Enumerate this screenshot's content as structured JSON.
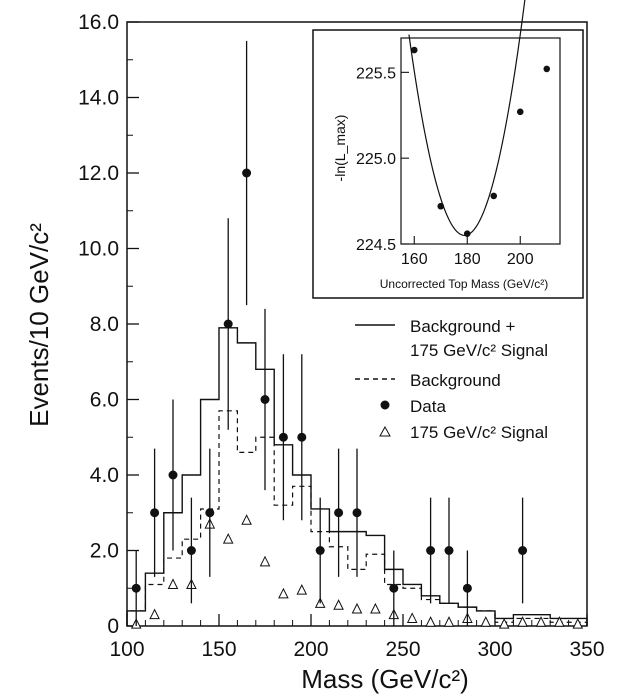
{
  "chart_data": [
    {
      "type": "histogram",
      "xlabel": "Mass (GeV/c²)",
      "ylabel": "Events/10 GeV/c²",
      "xlim": [
        100,
        350
      ],
      "ylim": [
        0,
        16
      ],
      "xticks": [
        "100",
        "150",
        "200",
        "250",
        "300",
        "350"
      ],
      "yticks": [
        "0",
        "2.0",
        "4.0",
        "6.0",
        "8.0",
        "10.0",
        "12.0",
        "14.0",
        "16.0"
      ],
      "bin_edges": [
        100,
        110,
        120,
        130,
        140,
        150,
        160,
        170,
        180,
        190,
        200,
        210,
        220,
        230,
        240,
        250,
        260,
        270,
        280,
        290,
        300,
        310,
        320,
        330,
        340,
        350
      ],
      "series": [
        {
          "name": "Background + 175 GeV/c² Signal",
          "style": "solid-step",
          "values": [
            0.4,
            1.4,
            3.0,
            4.0,
            6.0,
            7.9,
            7.5,
            6.8,
            4.8,
            4.0,
            3.1,
            2.5,
            2.5,
            2.4,
            1.5,
            1.1,
            0.8,
            0.6,
            0.5,
            0.4,
            0.2,
            0.3,
            0.3,
            0.2,
            0.2
          ]
        },
        {
          "name": "Background",
          "style": "dashed-step",
          "values": [
            0.4,
            1.1,
            1.8,
            2.3,
            3.1,
            5.7,
            4.6,
            5.0,
            3.2,
            3.7,
            2.5,
            2.1,
            1.5,
            1.9,
            1.1,
            1.0,
            0.7,
            0.6,
            0.5,
            0.4,
            0.1,
            0.2,
            0.2,
            0.1,
            0.1
          ]
        },
        {
          "name": "Data",
          "style": "points-with-errors",
          "points": [
            {
              "x": 105,
              "y": 1,
              "err": 1.0
            },
            {
              "x": 115,
              "y": 3,
              "err": 1.7
            },
            {
              "x": 125,
              "y": 4,
              "err": 2.0
            },
            {
              "x": 135,
              "y": 2,
              "err": 1.4
            },
            {
              "x": 145,
              "y": 3,
              "err": 1.7
            },
            {
              "x": 155,
              "y": 8,
              "err": 2.8
            },
            {
              "x": 165,
              "y": 12,
              "err": 3.5
            },
            {
              "x": 175,
              "y": 6,
              "err": 2.4
            },
            {
              "x": 185,
              "y": 5,
              "err": 2.2
            },
            {
              "x": 195,
              "y": 5,
              "err": 2.2
            },
            {
              "x": 205,
              "y": 2,
              "err": 1.4
            },
            {
              "x": 215,
              "y": 3,
              "err": 1.7
            },
            {
              "x": 225,
              "y": 3,
              "err": 1.7
            },
            {
              "x": 245,
              "y": 1,
              "err": 1.0
            },
            {
              "x": 265,
              "y": 2,
              "err": 1.4
            },
            {
              "x": 275,
              "y": 2,
              "err": 1.4
            },
            {
              "x": 285,
              "y": 1,
              "err": 1.0
            },
            {
              "x": 315,
              "y": 2,
              "err": 1.4
            }
          ]
        },
        {
          "name": "175 GeV/c² Signal",
          "style": "open-triangles",
          "points": [
            {
              "x": 105,
              "y": 0.05
            },
            {
              "x": 115,
              "y": 0.3
            },
            {
              "x": 125,
              "y": 1.1
            },
            {
              "x": 135,
              "y": 1.1
            },
            {
              "x": 145,
              "y": 2.7
            },
            {
              "x": 155,
              "y": 2.3
            },
            {
              "x": 165,
              "y": 2.8
            },
            {
              "x": 175,
              "y": 1.7
            },
            {
              "x": 185,
              "y": 0.85
            },
            {
              "x": 195,
              "y": 0.95
            },
            {
              "x": 205,
              "y": 0.6
            },
            {
              "x": 215,
              "y": 0.55
            },
            {
              "x": 225,
              "y": 0.45
            },
            {
              "x": 235,
              "y": 0.45
            },
            {
              "x": 245,
              "y": 0.3
            },
            {
              "x": 255,
              "y": 0.2
            },
            {
              "x": 265,
              "y": 0.1
            },
            {
              "x": 275,
              "y": 0.1
            },
            {
              "x": 285,
              "y": 0.2
            },
            {
              "x": 295,
              "y": 0.1
            },
            {
              "x": 305,
              "y": 0.05
            },
            {
              "x": 315,
              "y": 0.1
            },
            {
              "x": 325,
              "y": 0.1
            },
            {
              "x": 335,
              "y": 0.1
            },
            {
              "x": 345,
              "y": 0.05
            }
          ]
        }
      ],
      "legend": {
        "placement": "right-middle",
        "entries": [
          {
            "label": "Background +",
            "label2": "175 GeV/c² Signal",
            "style": "solid"
          },
          {
            "label": "Background",
            "style": "dashed"
          },
          {
            "label": "Data",
            "style": "dot"
          },
          {
            "label": "175 GeV/c² Signal",
            "style": "triangle"
          }
        ]
      }
    },
    {
      "type": "scatter",
      "role": "inset",
      "placement": "top-right",
      "xlabel": "Uncorrected Top Mass (GeV/c²)",
      "ylabel": "-ln(L_max)",
      "xlim": [
        155,
        215
      ],
      "ylim": [
        224.5,
        225.7
      ],
      "xticks": [
        "160",
        "180",
        "200"
      ],
      "yticks": [
        "224.5",
        "225.0",
        "225.5"
      ],
      "points": [
        {
          "x": 160,
          "y": 225.63
        },
        {
          "x": 170,
          "y": 224.72
        },
        {
          "x": 180,
          "y": 224.56
        },
        {
          "x": 190,
          "y": 224.78
        },
        {
          "x": 200,
          "y": 225.27
        },
        {
          "x": 210,
          "y": 225.52
        }
      ],
      "fit": {
        "type": "parabola",
        "x_min": 179,
        "y_min": 224.55,
        "x_range": [
          158,
          205
        ]
      }
    }
  ]
}
